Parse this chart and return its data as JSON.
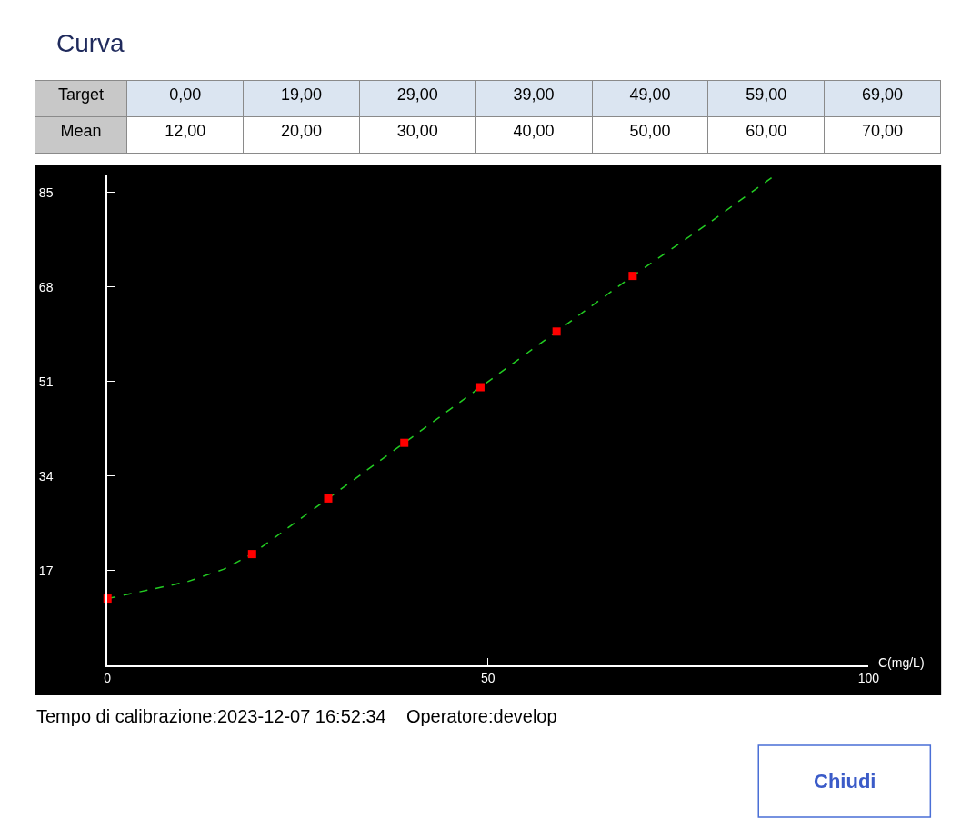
{
  "chart_data": {
    "type": "scatter",
    "title": "Curva",
    "xlabel": "C(mg/L)",
    "annotations": [
      "Target",
      "Mean",
      "0,00",
      "19,00",
      "29,00",
      "39,00",
      "49,00",
      "59,00",
      "69,00",
      "12,00",
      "20,00",
      "30,00",
      "40,00",
      "50,00",
      "60,00",
      "70,00",
      "Tempo di calibrazione:2023-12-07 16:52:34    Operatore:develop",
      "Chiudi"
    ],
    "series": [
      {
        "type": "line",
        "color": "#22cc22",
        "line_style": "dashed",
        "marker": "none",
        "x": [
          0,
          3.8,
          10.4,
          15.3,
          19,
          29,
          39,
          49,
          59,
          69,
          79,
          87.3
        ],
        "values": [
          12,
          13.1,
          15,
          17.3,
          20,
          30,
          40,
          50,
          60,
          70,
          79.5,
          87.7
        ]
      },
      {
        "color": "#ff0000",
        "marker": "square",
        "x": [
          0,
          19,
          29,
          39,
          49,
          59,
          69
        ],
        "values": [
          12,
          20,
          30,
          40,
          50,
          60,
          70
        ]
      }
    ],
    "xlim": [
      0,
      100
    ],
    "xticks": [
      0,
      50,
      100
    ],
    "ylim": [
      0,
      88
    ],
    "yticks": [
      17,
      34,
      51,
      68,
      85
    ],
    "grid": false
  }
}
